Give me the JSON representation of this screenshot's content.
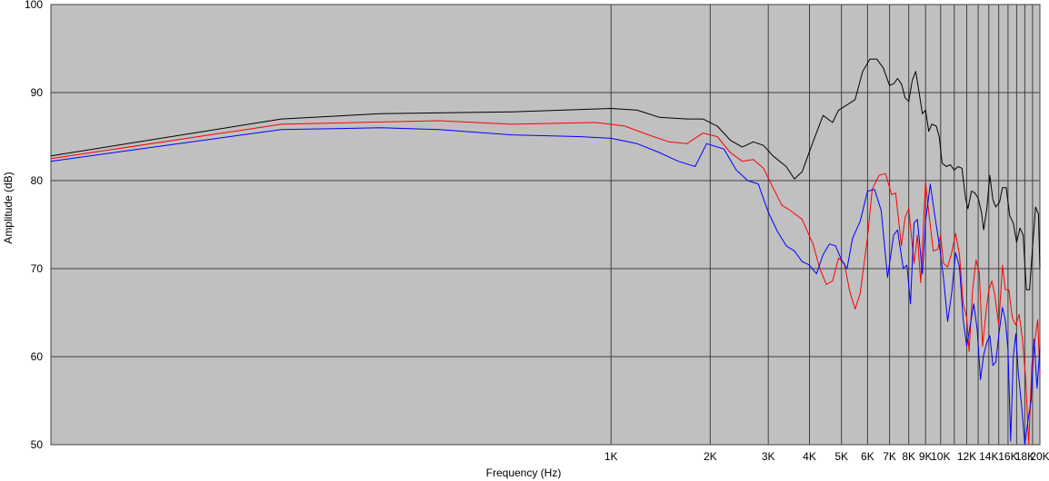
{
  "chart_data": {
    "type": "line",
    "title": "",
    "xlabel": "Frequency (Hz)",
    "ylabel": "Amplitude (dB)",
    "x_scale": "log",
    "xlim": [
      20,
      20000
    ],
    "ylim": [
      50,
      100
    ],
    "grid": true,
    "legend": "none",
    "colors": {
      "plot_background": "#c0c0c0",
      "grid": "#404040",
      "page_background": "#ffffff"
    },
    "x_ticks": [
      {
        "value": 1000,
        "label": "1K"
      },
      {
        "value": 2000,
        "label": "2K"
      },
      {
        "value": 3000,
        "label": "3K"
      },
      {
        "value": 4000,
        "label": "4K"
      },
      {
        "value": 5000,
        "label": "5K"
      },
      {
        "value": 6000,
        "label": "6K"
      },
      {
        "value": 7000,
        "label": "7K"
      },
      {
        "value": 8000,
        "label": "8K"
      },
      {
        "value": 9000,
        "label": "9K"
      },
      {
        "value": 10000,
        "label": "10K"
      },
      {
        "value": 12000,
        "label": "12K"
      },
      {
        "value": 14000,
        "label": "14K"
      },
      {
        "value": 16000,
        "label": "16K"
      },
      {
        "value": 18000,
        "label": "18K"
      },
      {
        "value": 20000,
        "label": "20K"
      }
    ],
    "x_gridlines": [
      1000,
      2000,
      3000,
      4000,
      5000,
      6000,
      7000,
      8000,
      9000,
      10000,
      11000,
      12000,
      13000,
      14000,
      15000,
      16000,
      17000,
      18000,
      19000,
      20000
    ],
    "y_ticks": [
      50,
      60,
      70,
      80,
      90,
      100
    ],
    "series": [
      {
        "color": "#000000",
        "points": [
          [
            20,
            82.8
          ],
          [
            100,
            87.0
          ],
          [
            200,
            87.6
          ],
          [
            500,
            87.8
          ],
          [
            1000,
            88.2
          ],
          [
            1200,
            88.0
          ],
          [
            1400,
            87.2
          ],
          [
            1700,
            87.0
          ],
          [
            1900,
            87.0
          ],
          [
            2100,
            86.2
          ],
          [
            2300,
            84.6
          ],
          [
            2500,
            83.8
          ],
          [
            2700,
            84.4
          ],
          [
            2900,
            84.0
          ],
          [
            3100,
            82.8
          ],
          [
            3400,
            81.6
          ],
          [
            3600,
            80.2
          ],
          [
            3800,
            81.0
          ],
          [
            4100,
            84.4
          ],
          [
            4400,
            87.4
          ],
          [
            4700,
            86.6
          ],
          [
            4900,
            88.0
          ],
          [
            5200,
            88.6
          ],
          [
            5500,
            89.2
          ],
          [
            5800,
            92.4
          ],
          [
            6100,
            93.8
          ],
          [
            6400,
            93.8
          ],
          [
            6700,
            92.8
          ],
          [
            7000,
            90.8
          ],
          [
            7200,
            91.0
          ],
          [
            7400,
            91.6
          ],
          [
            7600,
            91.0
          ],
          [
            7800,
            89.4
          ],
          [
            8000,
            89.0
          ],
          [
            8200,
            91.4
          ],
          [
            8400,
            92.4
          ],
          [
            8600,
            90.0
          ],
          [
            8800,
            87.6
          ],
          [
            9000,
            88.0
          ],
          [
            9200,
            85.6
          ],
          [
            9400,
            86.4
          ],
          [
            9700,
            86.2
          ],
          [
            9900,
            85.0
          ],
          [
            10100,
            82.0
          ],
          [
            10400,
            81.6
          ],
          [
            10700,
            81.8
          ],
          [
            11000,
            81.2
          ],
          [
            11300,
            81.6
          ],
          [
            11600,
            81.4
          ],
          [
            11900,
            78.0
          ],
          [
            12100,
            76.8
          ],
          [
            12400,
            78.8
          ],
          [
            12700,
            78.6
          ],
          [
            13000,
            78.0
          ],
          [
            13300,
            76.4
          ],
          [
            13500,
            74.4
          ],
          [
            13800,
            76.8
          ],
          [
            14100,
            80.6
          ],
          [
            14400,
            77.8
          ],
          [
            14700,
            77.0
          ],
          [
            15100,
            77.6
          ],
          [
            15400,
            79.2
          ],
          [
            15800,
            79.2
          ],
          [
            16200,
            76.0
          ],
          [
            16600,
            75.2
          ],
          [
            17000,
            73.0
          ],
          [
            17400,
            74.6
          ],
          [
            17800,
            73.8
          ],
          [
            18200,
            67.6
          ],
          [
            18600,
            67.6
          ],
          [
            19000,
            72.4
          ],
          [
            19400,
            77.0
          ],
          [
            19800,
            76.2
          ],
          [
            20000,
            70.0
          ]
        ]
      },
      {
        "color": "#ff0000",
        "points": [
          [
            20,
            82.5
          ],
          [
            100,
            86.4
          ],
          [
            300,
            86.8
          ],
          [
            500,
            86.4
          ],
          [
            900,
            86.6
          ],
          [
            1100,
            86.2
          ],
          [
            1300,
            85.2
          ],
          [
            1500,
            84.4
          ],
          [
            1700,
            84.2
          ],
          [
            1900,
            85.4
          ],
          [
            2100,
            85.0
          ],
          [
            2300,
            83.2
          ],
          [
            2500,
            82.2
          ],
          [
            2700,
            82.4
          ],
          [
            2900,
            81.4
          ],
          [
            3100,
            79.2
          ],
          [
            3300,
            77.2
          ],
          [
            3500,
            76.6
          ],
          [
            3800,
            75.6
          ],
          [
            4100,
            72.8
          ],
          [
            4300,
            70.0
          ],
          [
            4500,
            68.2
          ],
          [
            4700,
            68.6
          ],
          [
            4900,
            71.2
          ],
          [
            5100,
            70.6
          ],
          [
            5300,
            67.4
          ],
          [
            5500,
            65.4
          ],
          [
            5700,
            67.2
          ],
          [
            6000,
            73.6
          ],
          [
            6200,
            79.0
          ],
          [
            6500,
            80.6
          ],
          [
            6800,
            80.8
          ],
          [
            7100,
            78.4
          ],
          [
            7300,
            78.6
          ],
          [
            7600,
            72.6
          ],
          [
            7800,
            75.8
          ],
          [
            8000,
            76.8
          ],
          [
            8300,
            70.6
          ],
          [
            8500,
            73.8
          ],
          [
            8700,
            68.4
          ],
          [
            9000,
            79.8
          ],
          [
            9200,
            76.4
          ],
          [
            9500,
            72.0
          ],
          [
            9800,
            72.2
          ],
          [
            10000,
            73.8
          ],
          [
            10200,
            70.6
          ],
          [
            10500,
            70.2
          ],
          [
            10800,
            71.8
          ],
          [
            11100,
            74.0
          ],
          [
            11400,
            71.6
          ],
          [
            11700,
            66.0
          ],
          [
            12000,
            64.4
          ],
          [
            12200,
            60.6
          ],
          [
            12500,
            67.6
          ],
          [
            12800,
            71.0
          ],
          [
            13100,
            69.4
          ],
          [
            13400,
            61.2
          ],
          [
            13700,
            64.8
          ],
          [
            14000,
            67.6
          ],
          [
            14300,
            68.6
          ],
          [
            14600,
            67.0
          ],
          [
            15000,
            63.6
          ],
          [
            15400,
            70.4
          ],
          [
            15700,
            67.6
          ],
          [
            16100,
            67.6
          ],
          [
            16500,
            64.4
          ],
          [
            16900,
            63.6
          ],
          [
            17300,
            64.8
          ],
          [
            17700,
            62.0
          ],
          [
            18100,
            57.6
          ],
          [
            18500,
            50.0
          ],
          [
            18900,
            59.0
          ],
          [
            19300,
            61.8
          ],
          [
            19700,
            64.2
          ],
          [
            20000,
            58.0
          ]
        ]
      },
      {
        "color": "#0000ff",
        "points": [
          [
            20,
            82.2
          ],
          [
            100,
            85.8
          ],
          [
            200,
            86.0
          ],
          [
            300,
            85.8
          ],
          [
            500,
            85.2
          ],
          [
            800,
            85.0
          ],
          [
            1000,
            84.8
          ],
          [
            1200,
            84.2
          ],
          [
            1400,
            83.2
          ],
          [
            1600,
            82.2
          ],
          [
            1800,
            81.6
          ],
          [
            1950,
            84.2
          ],
          [
            2200,
            83.6
          ],
          [
            2400,
            81.2
          ],
          [
            2600,
            80.0
          ],
          [
            2800,
            79.6
          ],
          [
            3000,
            76.4
          ],
          [
            3200,
            74.2
          ],
          [
            3400,
            72.6
          ],
          [
            3600,
            72.0
          ],
          [
            3800,
            70.8
          ],
          [
            4000,
            70.4
          ],
          [
            4200,
            69.4
          ],
          [
            4400,
            71.6
          ],
          [
            4600,
            72.8
          ],
          [
            4800,
            72.6
          ],
          [
            5000,
            71.0
          ],
          [
            5200,
            70.0
          ],
          [
            5400,
            73.4
          ],
          [
            5700,
            75.4
          ],
          [
            6000,
            78.8
          ],
          [
            6300,
            79.0
          ],
          [
            6600,
            76.6
          ],
          [
            6900,
            69.0
          ],
          [
            7200,
            73.8
          ],
          [
            7400,
            74.4
          ],
          [
            7700,
            70.0
          ],
          [
            7900,
            70.4
          ],
          [
            8100,
            66.0
          ],
          [
            8300,
            75.2
          ],
          [
            8500,
            75.6
          ],
          [
            8800,
            69.4
          ],
          [
            9000,
            75.4
          ],
          [
            9300,
            79.6
          ],
          [
            9600,
            76.0
          ],
          [
            9900,
            72.8
          ],
          [
            10200,
            69.0
          ],
          [
            10500,
            64.0
          ],
          [
            10800,
            67.2
          ],
          [
            11100,
            71.8
          ],
          [
            11400,
            70.2
          ],
          [
            11700,
            64.2
          ],
          [
            12000,
            61.2
          ],
          [
            12300,
            63.6
          ],
          [
            12600,
            66.0
          ],
          [
            12900,
            63.2
          ],
          [
            13200,
            57.4
          ],
          [
            13500,
            60.2
          ],
          [
            13800,
            61.6
          ],
          [
            14100,
            62.4
          ],
          [
            14400,
            59.0
          ],
          [
            14700,
            59.4
          ],
          [
            15000,
            62.4
          ],
          [
            15400,
            65.6
          ],
          [
            15700,
            64.2
          ],
          [
            16000,
            60.8
          ],
          [
            16300,
            50.4
          ],
          [
            16600,
            60.0
          ],
          [
            16900,
            62.6
          ],
          [
            17200,
            58.2
          ],
          [
            17600,
            54.4
          ],
          [
            18000,
            50.0
          ],
          [
            18400,
            52.8
          ],
          [
            18800,
            55.0
          ],
          [
            19200,
            62.0
          ],
          [
            19600,
            56.4
          ],
          [
            20000,
            61.0
          ]
        ]
      }
    ]
  }
}
